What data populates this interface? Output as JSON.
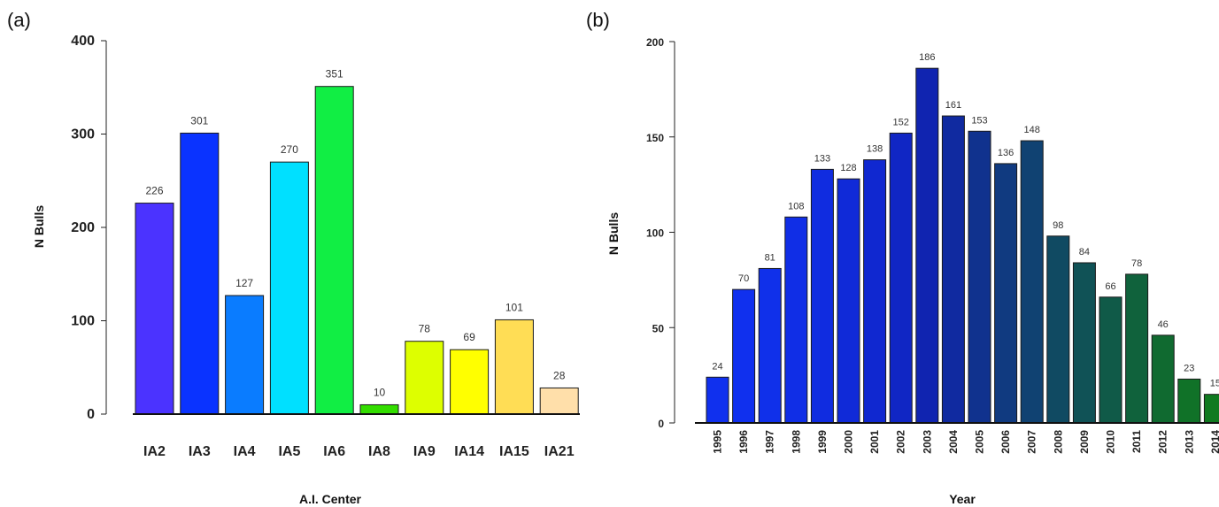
{
  "panels": {
    "a_label": "(a)",
    "b_label": "(b)"
  },
  "chart_data": [
    {
      "type": "bar",
      "title": "",
      "xlabel": "A.I. Center",
      "ylabel": "N Bulls",
      "ylim": [
        0,
        400
      ],
      "yticks": [
        0,
        100,
        200,
        300,
        400
      ],
      "categories": [
        "IA2",
        "IA3",
        "IA4",
        "IA5",
        "IA6",
        "IA8",
        "IA9",
        "IA14",
        "IA15",
        "IA21"
      ],
      "values": [
        226,
        301,
        127,
        270,
        351,
        10,
        78,
        69,
        101,
        28
      ],
      "colors": [
        "#4b33ff",
        "#0a33ff",
        "#0a7cff",
        "#00e0ff",
        "#11ee44",
        "#33dd00",
        "#ddff00",
        "#ffff00",
        "#ffdd55",
        "#ffdfaa"
      ],
      "grid": false,
      "legend": "none"
    },
    {
      "type": "bar",
      "title": "",
      "xlabel": "Year",
      "ylabel": "N Bulls",
      "ylim": [
        0,
        200
      ],
      "yticks": [
        0,
        50,
        100,
        150,
        200
      ],
      "categories": [
        "1995",
        "1996",
        "1997",
        "1998",
        "1999",
        "2000",
        "2001",
        "2002",
        "2003",
        "2004",
        "2005",
        "2006",
        "2007",
        "2008",
        "2009",
        "2010",
        "2011",
        "2012",
        "2013",
        "2014"
      ],
      "values": [
        24,
        70,
        81,
        108,
        133,
        128,
        138,
        152,
        186,
        161,
        153,
        136,
        148,
        98,
        84,
        66,
        78,
        46,
        23,
        15
      ],
      "colors": [
        "#1030ee",
        "#1030ee",
        "#1030ea",
        "#102ee6",
        "#102ce0",
        "#102ad8",
        "#1028d0",
        "#1026c4",
        "#1024b0",
        "#102aa0",
        "#10328e",
        "#103a80",
        "#104272",
        "#104a62",
        "#105256",
        "#105a48",
        "#10623c",
        "#106a30",
        "#107228",
        "#107a20"
      ],
      "grid": false,
      "legend": "none"
    }
  ]
}
